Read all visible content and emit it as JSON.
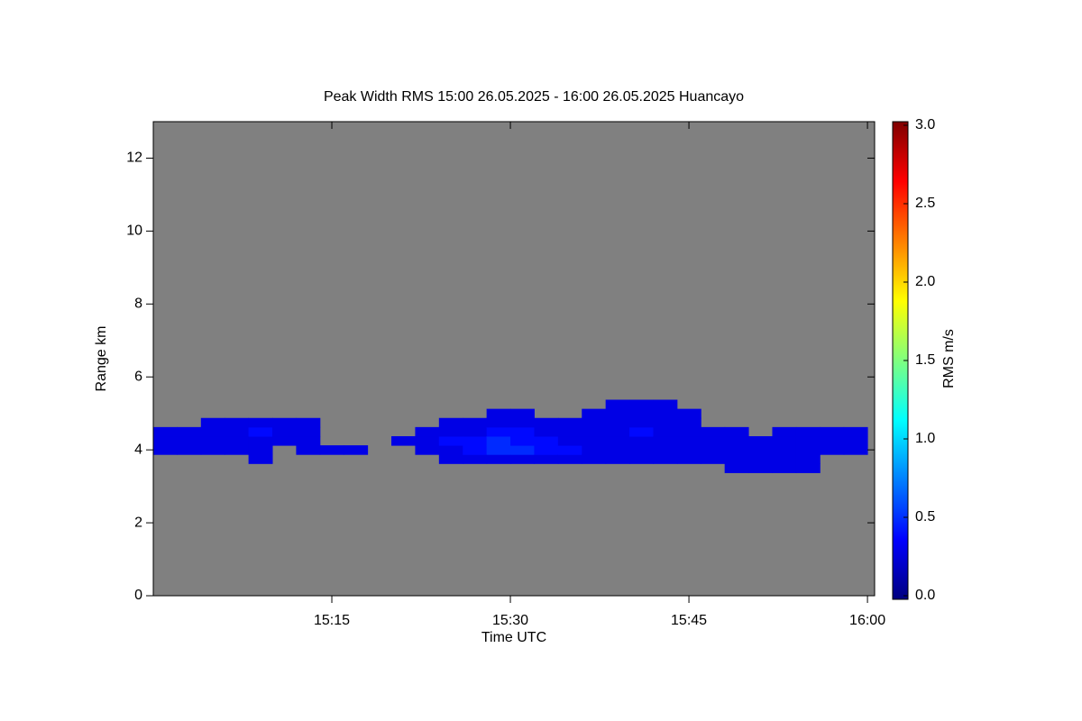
{
  "chart_data": {
    "type": "heatmap",
    "title": "Peak Width RMS   15:00 26.05.2025 - 16:00 26.05.2025 Huancayo",
    "x_label": "Time UTC",
    "y_label": "Range km",
    "colorbar_label": "RMS m/s",
    "x": [
      "15:01",
      "15:03",
      "15:05",
      "15:07",
      "15:09",
      "15:11",
      "15:13",
      "15:15",
      "15:17",
      "15:19",
      "15:21",
      "15:23",
      "15:25",
      "15:27",
      "15:29",
      "15:31",
      "15:33",
      "15:35",
      "15:37",
      "15:39",
      "15:41",
      "15:43",
      "15:45",
      "15:47",
      "15:49",
      "15:51",
      "15:53",
      "15:55",
      "15:57",
      "15:59"
    ],
    "y": [
      3.5,
      3.75,
      4,
      4.25,
      4.5,
      4.75,
      5,
      5.25
    ],
    "values": [
      [
        null,
        null,
        0.3,
        0.3,
        0.3,
        null,
        null,
        null
      ],
      [
        null,
        null,
        0.3,
        0.3,
        0.3,
        null,
        null,
        null
      ],
      [
        null,
        null,
        0.3,
        0.3,
        0.3,
        0.3,
        null,
        null
      ],
      [
        null,
        null,
        0.3,
        0.3,
        0.3,
        0.3,
        null,
        null
      ],
      [
        null,
        0.3,
        0.3,
        0.3,
        0.4,
        0.3,
        null,
        null
      ],
      [
        null,
        null,
        null,
        0.3,
        0.3,
        0.3,
        null,
        null
      ],
      [
        null,
        null,
        0.3,
        0.3,
        0.3,
        0.3,
        null,
        null
      ],
      [
        null,
        null,
        0.3,
        null,
        null,
        null,
        null,
        null
      ],
      [
        null,
        null,
        0.3,
        null,
        null,
        null,
        null,
        null
      ],
      [
        null,
        null,
        null,
        null,
        null,
        null,
        null,
        null
      ],
      [
        null,
        null,
        null,
        0.3,
        null,
        null,
        null,
        null
      ],
      [
        null,
        null,
        0.3,
        0.3,
        0.3,
        null,
        null,
        null
      ],
      [
        null,
        0.3,
        0.3,
        0.4,
        0.3,
        0.3,
        null,
        null
      ],
      [
        null,
        0.3,
        0.4,
        0.4,
        0.3,
        0.3,
        null,
        null
      ],
      [
        null,
        0.3,
        0.5,
        0.5,
        0.4,
        0.3,
        0.3,
        null
      ],
      [
        null,
        0.3,
        0.5,
        0.4,
        0.4,
        0.3,
        0.3,
        null
      ],
      [
        null,
        0.3,
        0.4,
        0.4,
        0.3,
        0.3,
        null,
        null
      ],
      [
        null,
        0.3,
        0.4,
        0.3,
        0.3,
        0.3,
        null,
        null
      ],
      [
        null,
        0.3,
        0.3,
        0.3,
        0.3,
        0.3,
        0.3,
        null
      ],
      [
        null,
        0.3,
        0.3,
        0.3,
        0.3,
        0.3,
        0.3,
        0.3
      ],
      [
        null,
        0.3,
        0.3,
        0.3,
        0.4,
        0.3,
        0.3,
        0.3
      ],
      [
        null,
        0.3,
        0.3,
        0.3,
        0.3,
        0.3,
        0.3,
        0.3
      ],
      [
        null,
        0.3,
        0.3,
        0.3,
        0.3,
        0.3,
        0.3,
        null
      ],
      [
        null,
        0.3,
        0.3,
        0.3,
        0.3,
        null,
        null,
        null
      ],
      [
        0.3,
        0.3,
        0.3,
        0.3,
        0.3,
        null,
        null,
        null
      ],
      [
        0.3,
        0.3,
        0.3,
        0.3,
        null,
        null,
        null,
        null
      ],
      [
        0.3,
        0.3,
        0.3,
        0.3,
        0.3,
        null,
        null,
        null
      ],
      [
        0.3,
        0.3,
        0.3,
        0.3,
        0.3,
        null,
        null,
        null
      ],
      [
        null,
        null,
        0.3,
        0.3,
        0.3,
        null,
        null,
        null
      ],
      [
        null,
        null,
        0.3,
        0.3,
        0.3,
        null,
        null,
        null
      ]
    ],
    "cell_size": [
      2,
      0.25
    ],
    "xlim": [
      "15:00:00",
      "16:00:36"
    ],
    "xticks": [
      "15:15",
      "15:30",
      "15:45",
      "16:00"
    ],
    "ylim": [
      0,
      13
    ],
    "yticks": [
      0,
      2,
      4,
      6,
      8,
      10,
      12
    ],
    "clim": [
      0,
      3
    ],
    "cticks": [
      {
        "value": 0,
        "label": "0.0"
      },
      {
        "value": 0.5,
        "label": "0.5"
      },
      {
        "value": 1,
        "label": "1.0"
      },
      {
        "value": 1.5,
        "label": "1.5"
      },
      {
        "value": 2,
        "label": "2.0"
      },
      {
        "value": 2.5,
        "label": "2.5"
      },
      {
        "value": 3,
        "label": "3.0"
      }
    ],
    "colorscale": [
      "#00007f",
      "#0000ff",
      "#007fff",
      "#00ffff",
      "#7fff7f",
      "#ffff00",
      "#ff7f00",
      "#ff0000",
      "#7f0000"
    ],
    "background": "#808080"
  }
}
